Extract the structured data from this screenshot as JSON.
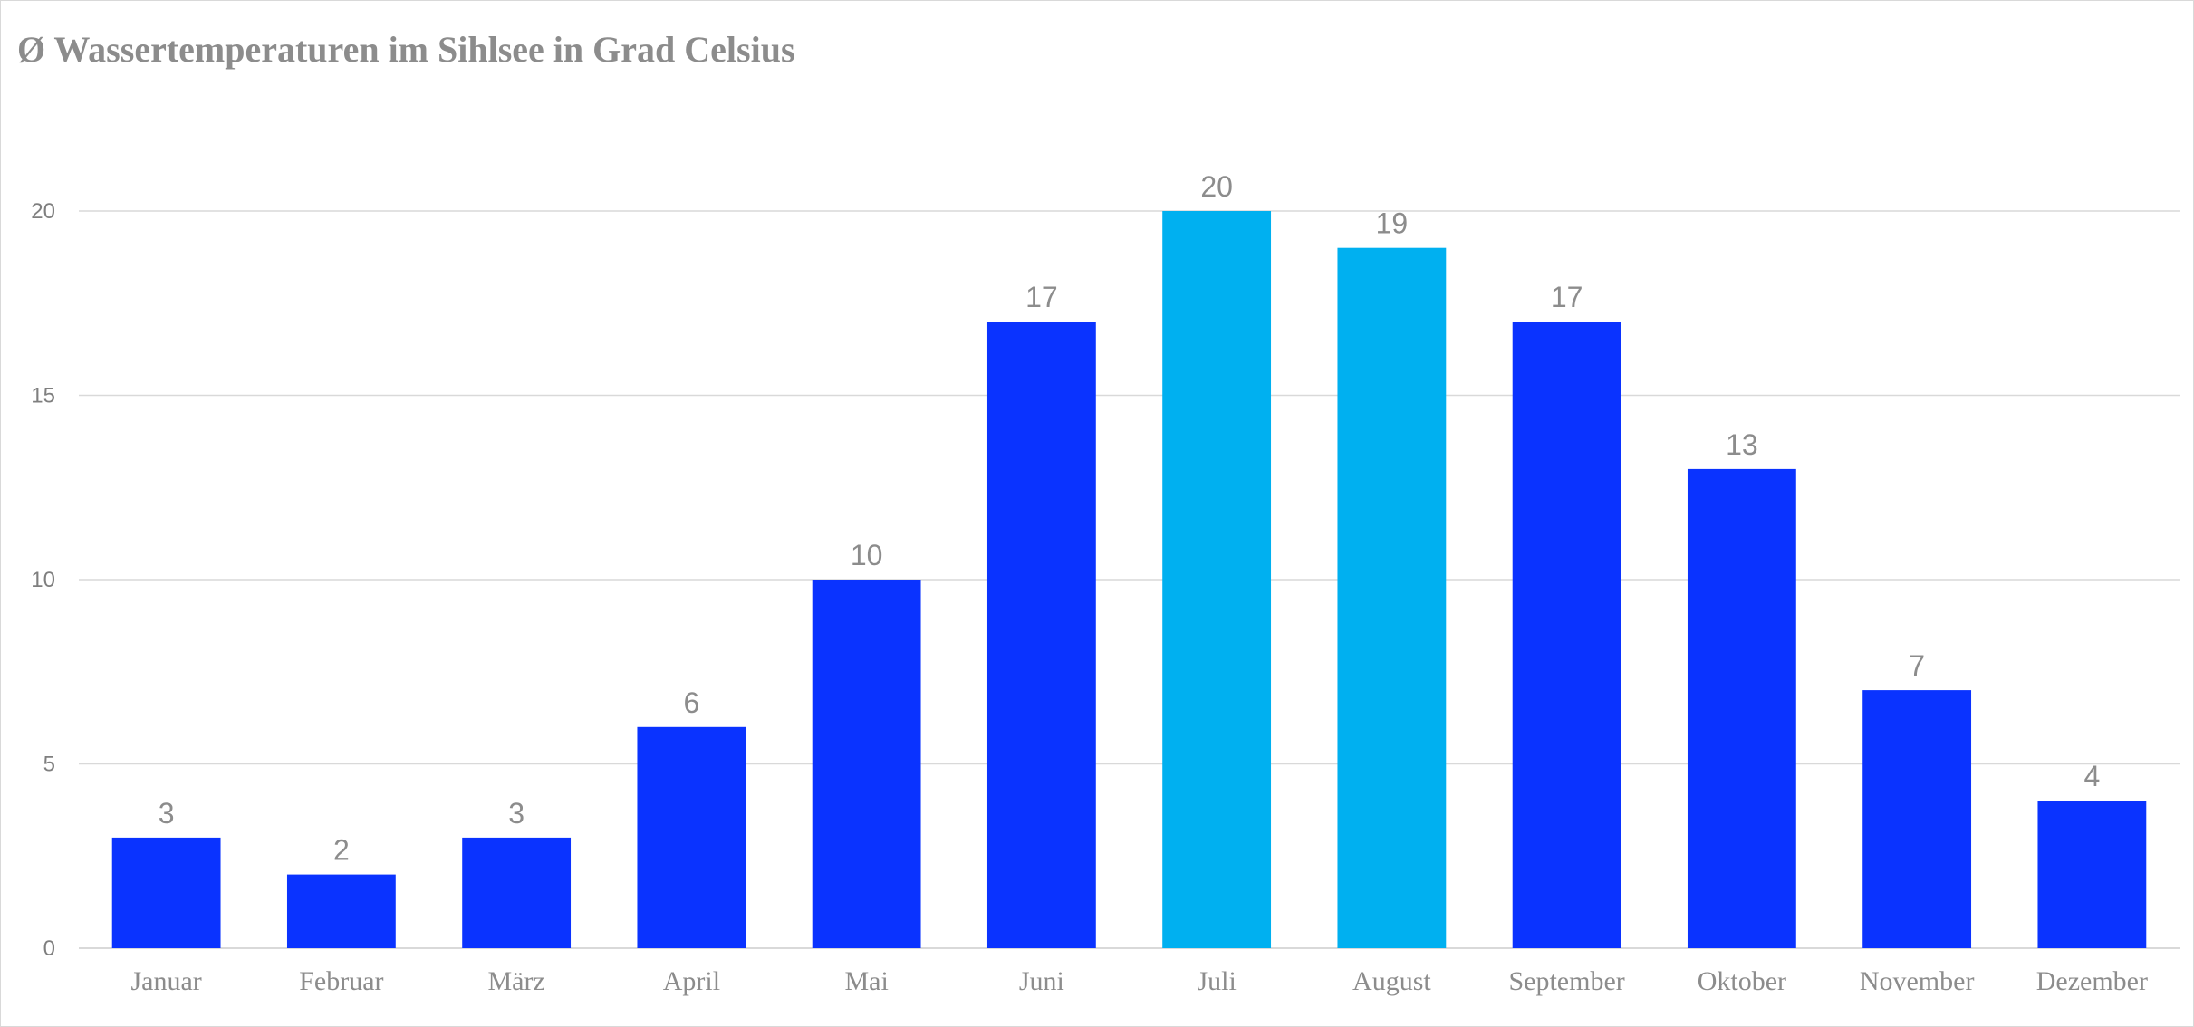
{
  "chart_data": {
    "type": "bar",
    "title": "Ø Wassertemperaturen im Sihlsee in Grad Celsius",
    "categories": [
      "Januar",
      "Februar",
      "März",
      "April",
      "Mai",
      "Juni",
      "Juli",
      "August",
      "September",
      "Oktober",
      "November",
      "Dezember"
    ],
    "values": [
      3,
      2,
      3,
      6,
      10,
      17,
      20,
      19,
      17,
      13,
      7,
      4
    ],
    "xlabel": "",
    "ylabel": "",
    "ylim": [
      0,
      20
    ],
    "yticks": [
      0,
      5,
      10,
      15,
      20
    ],
    "grid": true,
    "legend": "none",
    "colors": {
      "default": "#0a33ff",
      "highlight": "#00b0f0",
      "highlighted_categories": [
        "Juli",
        "August"
      ],
      "gridline": "#d9d9d9",
      "text": "#8c8c8c"
    }
  }
}
